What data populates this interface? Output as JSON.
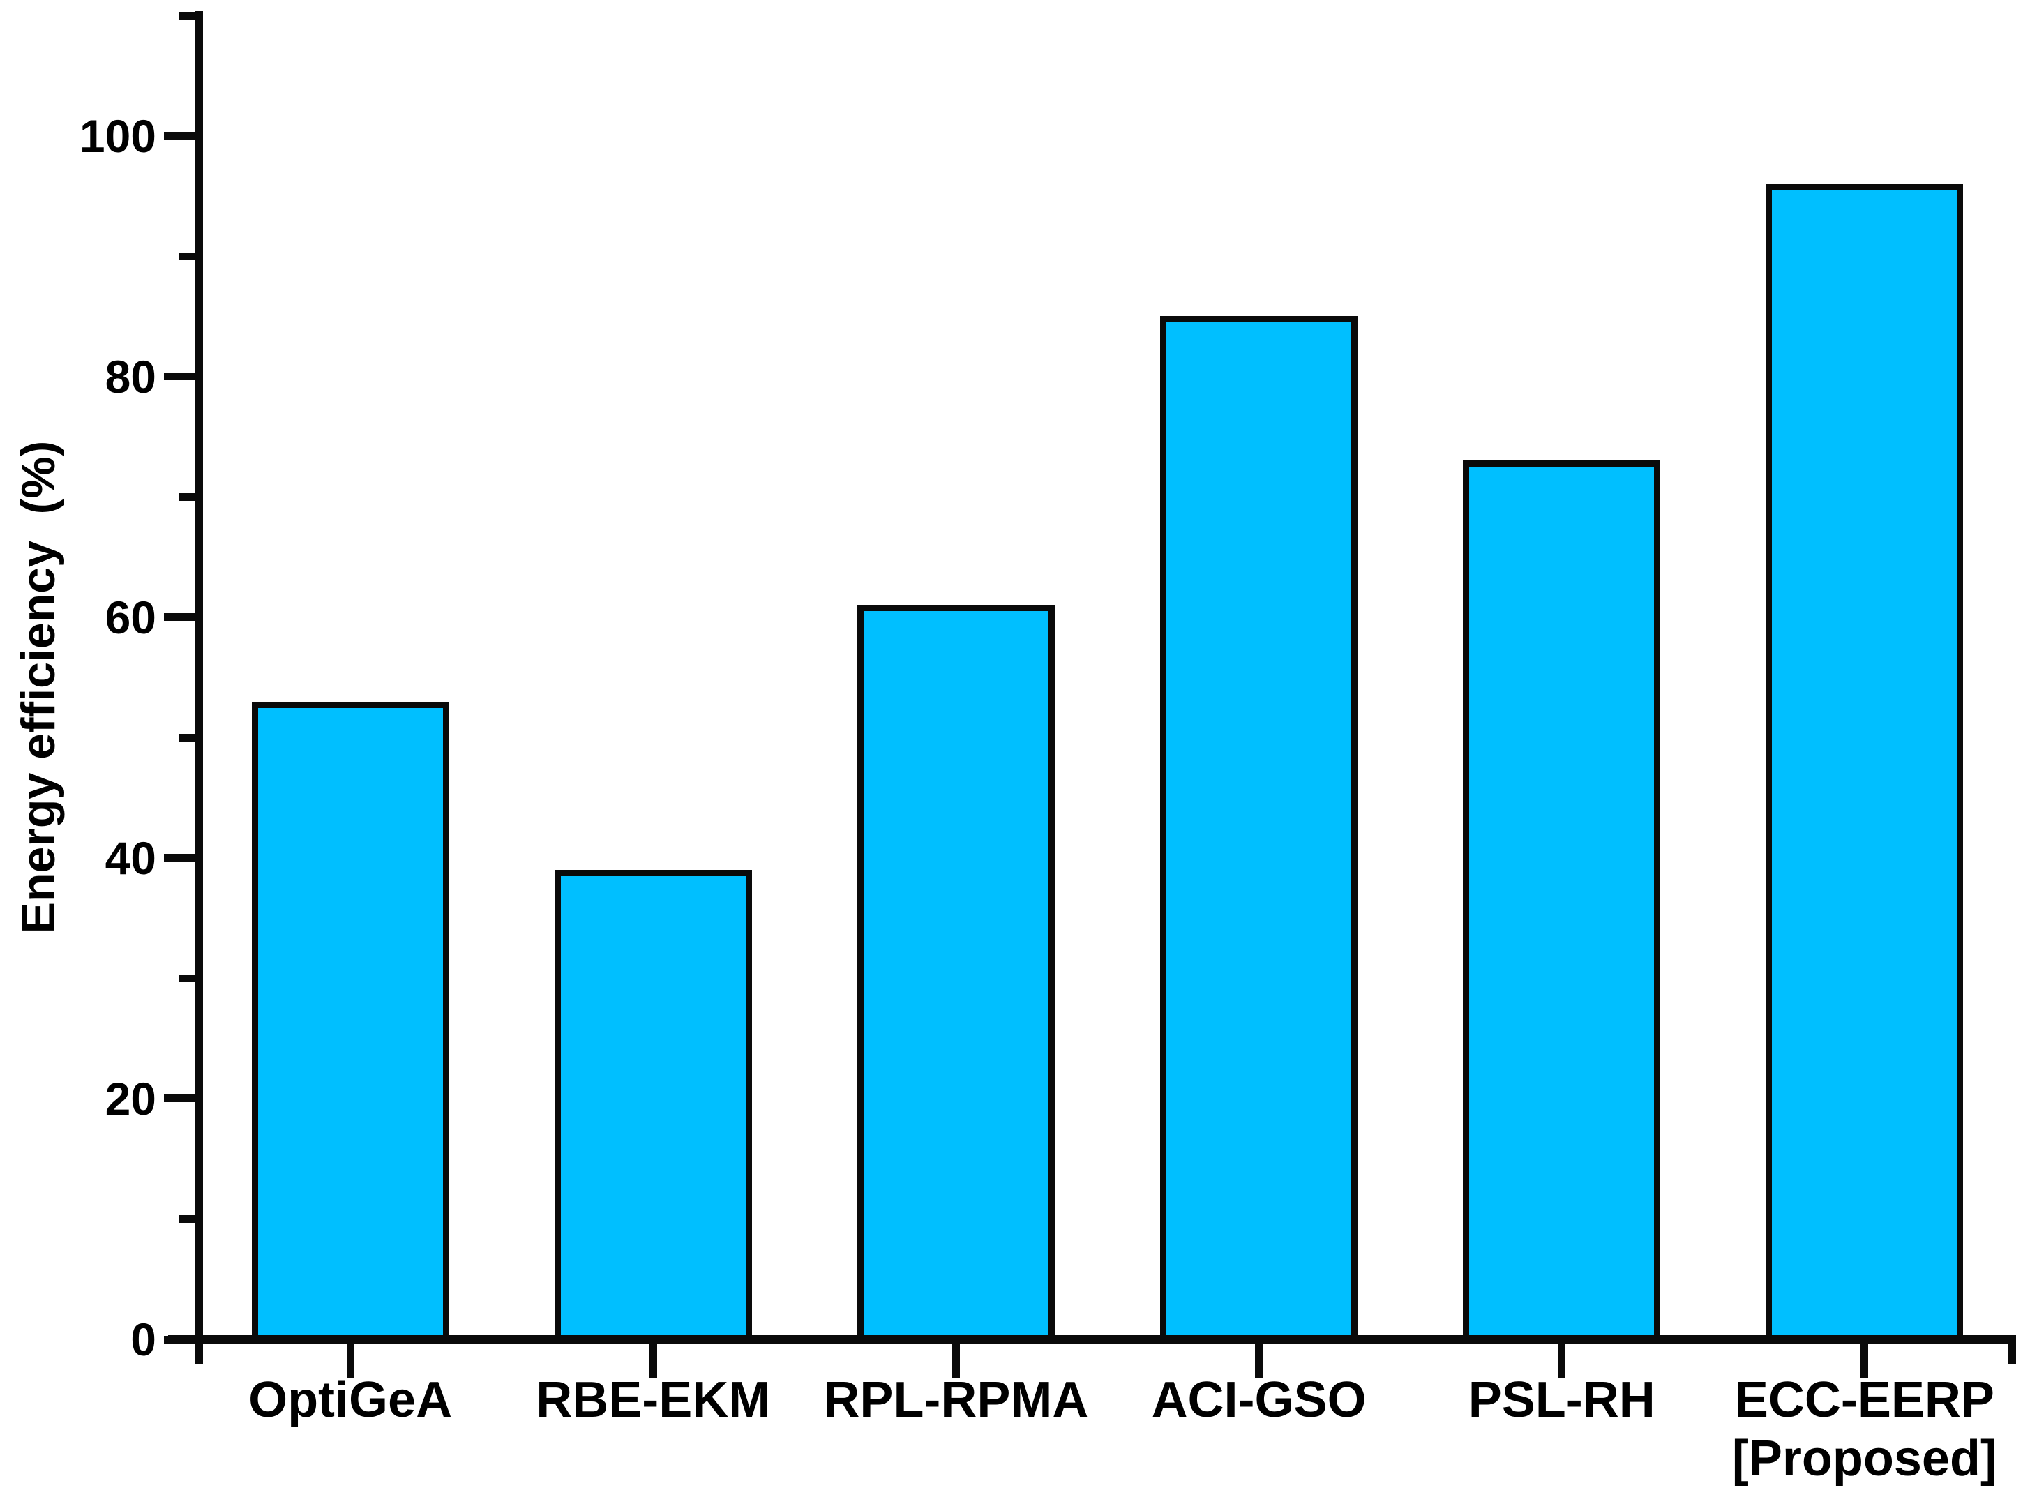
{
  "figure": {
    "background": "#ffffff"
  },
  "chart_data": {
    "type": "bar",
    "title": "",
    "xlabel": "",
    "ylabel": "Energy efficiency  (%)",
    "categories": [
      "OptiGeA",
      "RBE-EKM",
      "RPL-RPMA",
      "ACI-GSO",
      "PSL-RH",
      "ECC-EERP [Proposed]"
    ],
    "category_lines": [
      [
        "OptiGeA"
      ],
      [
        "RBE-EKM"
      ],
      [
        "RPL-RPMA"
      ],
      [
        "ACI-GSO"
      ],
      [
        "PSL-RH"
      ],
      [
        "ECC-EERP",
        "[Proposed]"
      ]
    ],
    "series": [
      {
        "name": "Energy efficiency (%)",
        "values": [
          53,
          39,
          61,
          85,
          73,
          96
        ]
      }
    ],
    "ylim": [
      0,
      110
    ],
    "y_major_ticks": [
      0,
      20,
      40,
      60,
      80,
      100
    ],
    "y_minor_ticks": [
      10,
      30,
      50,
      70,
      90,
      110
    ],
    "grid": "off",
    "legend": "none",
    "colors": {
      "bar_fill": "#00BFFF",
      "bar_border": "#0a0a0a",
      "axis": "#0a0a0a",
      "text": "#000000"
    }
  }
}
